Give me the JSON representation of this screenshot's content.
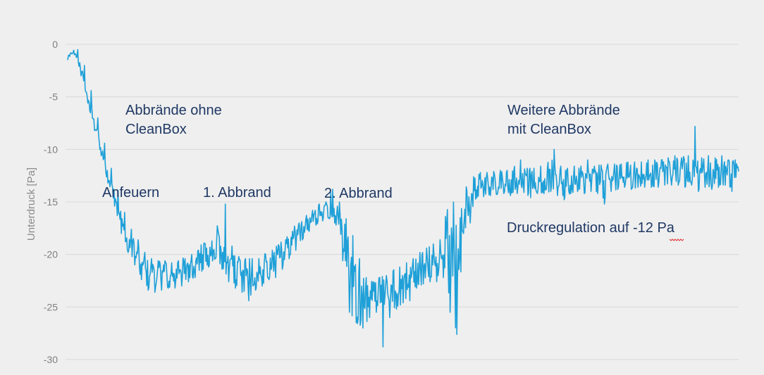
{
  "chart_data": {
    "type": "line",
    "title": "",
    "xlabel": "",
    "ylabel": "Unterdruck [Pa]",
    "ylim": [
      -30,
      0
    ],
    "yticks": [
      0,
      -5,
      -10,
      -15,
      -20,
      -25,
      -30
    ],
    "grid": true,
    "line_color": "#1fa0d8",
    "series": [
      {
        "x": [
          0,
          1,
          2,
          3,
          4,
          5,
          6,
          7,
          8,
          9,
          10,
          11,
          12,
          13,
          14,
          15,
          16,
          17,
          18,
          19,
          20,
          21,
          22,
          23,
          24,
          25,
          26,
          27,
          28,
          29,
          30,
          31,
          32,
          33,
          34,
          35,
          36,
          37,
          38,
          39,
          40,
          41,
          42,
          43,
          44,
          45,
          46,
          47,
          48,
          49,
          50,
          51,
          52,
          53,
          54,
          55,
          56,
          57,
          58,
          59,
          60,
          61,
          62,
          63,
          64,
          65,
          66,
          67,
          68,
          69,
          70,
          71,
          72,
          73,
          74,
          75,
          76,
          77,
          78,
          79,
          80,
          81,
          82,
          83,
          84,
          85,
          86,
          87,
          88,
          89,
          90,
          91,
          92,
          93,
          94,
          95,
          96,
          97,
          98,
          99,
          100
        ],
        "values": [
          -1.2,
          -0.6,
          -2.5,
          -5.0,
          -7.6,
          -10.0,
          -12.5,
          -14.6,
          -17.0,
          -18.6,
          -19.8,
          -20.8,
          -21.4,
          -21.8,
          -22.0,
          -22.1,
          -21.9,
          -21.7,
          -21.3,
          -20.9,
          -20.3,
          -19.9,
          -19.3,
          -19.8,
          -21.0,
          -21.8,
          -22.0,
          -22.1,
          -21.9,
          -21.6,
          -21.1,
          -20.6,
          -19.9,
          -19.2,
          -18.4,
          -17.6,
          -16.9,
          -16.3,
          -15.9,
          -15.7,
          -16.0,
          -18.0,
          -20.6,
          -22.6,
          -24.0,
          -24.4,
          -24.2,
          -23.8,
          -23.4,
          -23.0,
          -22.6,
          -22.2,
          -21.8,
          -21.4,
          -21.1,
          -20.8,
          -20.4,
          -20.1,
          -19.8,
          -16.3,
          -15.5,
          -13.6,
          -13.3,
          -13.2,
          -13.1,
          -13.0,
          -13.1,
          -13.0,
          -12.9,
          -13.0,
          -12.9,
          -13.0,
          -12.8,
          -12.9,
          -13.0,
          -12.9,
          -12.8,
          -12.8,
          -12.7,
          -12.6,
          -12.6,
          -12.7,
          -12.5,
          -12.4,
          -12.4,
          -12.3,
          -12.2,
          -12.2,
          -12.1,
          -12.0,
          -11.9,
          -11.8,
          -11.8,
          -11.7,
          -11.8,
          -11.9,
          -12.0,
          -12.1,
          -12.1,
          -12.2,
          -12.1
        ],
        "min_values": [
          -1.5,
          -1.0,
          -3.0,
          -5.6,
          -8.2,
          -10.6,
          -13.2,
          -15.4,
          -18.0,
          -19.8,
          -21.0,
          -22.4,
          -23.4,
          -23.6,
          -23.4,
          -23.2,
          -23.2,
          -23.0,
          -22.6,
          -22.2,
          -21.6,
          -21.2,
          -20.4,
          -21.4,
          -22.6,
          -23.2,
          -23.6,
          -24.4,
          -23.4,
          -23.0,
          -22.4,
          -22.2,
          -21.4,
          -20.4,
          -19.6,
          -18.6,
          -17.8,
          -17.2,
          -16.8,
          -16.6,
          -17.2,
          -20.6,
          -25.5,
          -26.5,
          -27.0,
          -26.0,
          -25.5,
          -28.8,
          -26.0,
          -25.2,
          -24.6,
          -24.4,
          -23.2,
          -22.8,
          -22.6,
          -22.6,
          -22.2,
          -25.5,
          -27.6,
          -18.0,
          -17.0,
          -14.6,
          -14.5,
          -14.4,
          -14.3,
          -14.2,
          -14.4,
          -14.2,
          -14.1,
          -14.6,
          -14.2,
          -14.2,
          -14.0,
          -14.4,
          -14.8,
          -14.2,
          -14.0,
          -14.2,
          -14.0,
          -14.2,
          -15.2,
          -14.0,
          -13.8,
          -13.6,
          -13.8,
          -13.6,
          -13.6,
          -13.6,
          -13.6,
          -13.4,
          -13.4,
          -13.4,
          -13.6,
          -13.4,
          -14.0,
          -13.6,
          -13.8,
          -13.6,
          -13.4,
          -14.0,
          -13.6
        ],
        "max_values": [
          -0.8,
          -0.5,
          -2.0,
          -4.4,
          -7.0,
          -9.4,
          -11.8,
          -13.9,
          -16.0,
          -17.6,
          -18.6,
          -19.8,
          -20.4,
          -20.6,
          -20.6,
          -20.8,
          -20.6,
          -20.4,
          -20.0,
          -19.6,
          -19.0,
          -18.7,
          -18.1,
          -15.2,
          -19.2,
          -20.2,
          -20.4,
          -20.4,
          -20.4,
          -20.0,
          -19.6,
          -19.2,
          -18.6,
          -17.8,
          -17.0,
          -16.6,
          -15.8,
          -15.2,
          -15.0,
          -13.8,
          -15.0,
          -16.6,
          -18.2,
          -20.4,
          -22.2,
          -22.6,
          -22.2,
          -22.0,
          -21.6,
          -21.2,
          -20.8,
          -20.4,
          -19.8,
          -19.4,
          -19.0,
          -18.6,
          -16.8,
          -15.0,
          -16.5,
          -13.9,
          -12.6,
          -12.2,
          -12.2,
          -12.1,
          -12.0,
          -12.0,
          -12.0,
          -11.0,
          -11.8,
          -11.8,
          -11.6,
          -11.8,
          -10.0,
          -11.6,
          -11.8,
          -11.6,
          -11.6,
          -11.0,
          -11.6,
          -11.5,
          -11.4,
          -11.4,
          -11.4,
          -11.2,
          -11.2,
          -11.2,
          -11.0,
          -11.0,
          -11.0,
          -10.8,
          -10.6,
          -10.8,
          -10.6,
          -7.8,
          -10.8,
          -10.6,
          -10.8,
          -10.6,
          -11.0,
          -11.0,
          -10.8
        ]
      }
    ]
  },
  "annotations": [
    {
      "id": "ohne-1",
      "text": "Abbrände ohne"
    },
    {
      "id": "ohne-2",
      "text": "CleanBox"
    },
    {
      "id": "anfeuern",
      "text": "Anfeuern"
    },
    {
      "id": "abbrand-1",
      "text": "1. Abbrand"
    },
    {
      "id": "abbrand-2",
      "text": "2. Abbrand"
    },
    {
      "id": "weitere-1",
      "text": "Weitere Abbrände"
    },
    {
      "id": "weitere-2",
      "text": "mit CleanBox"
    },
    {
      "id": "druckreg",
      "text": "Druckregulation auf -12 Pa"
    }
  ]
}
